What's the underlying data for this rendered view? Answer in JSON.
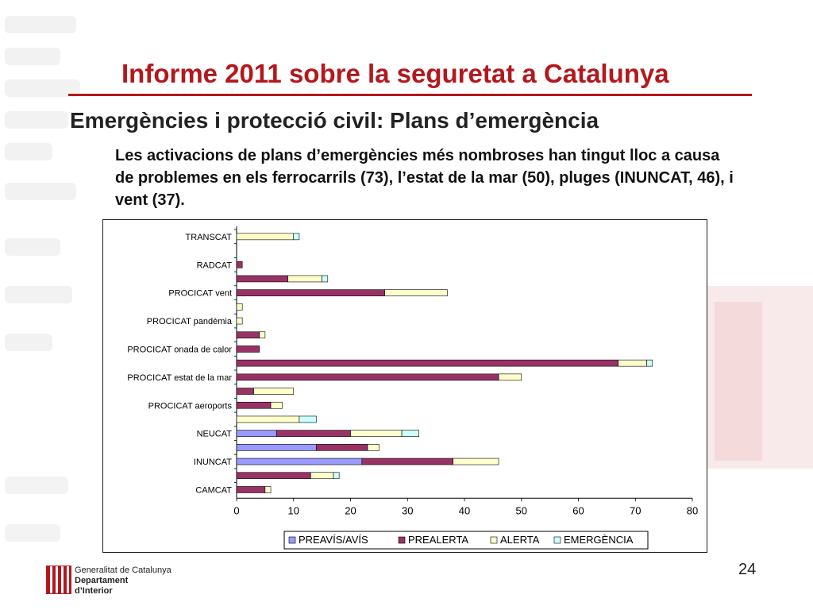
{
  "slide": {
    "title": "Informe 2011 sobre la seguretat a Catalunya",
    "subtitle": "Emergències i protecció civil: Plans d’emergència",
    "body": "Les activacions de plans d’emergències més nombroses han tingut lloc a causa de problemes en els ferrocarrils (73), l’estat de la mar (50), pluges (INUNCAT, 46), i vent (37).",
    "page_number": "24",
    "footer": {
      "line1": "Generalitat de Catalunya",
      "line2": "Departament",
      "line3": "d’Interior"
    }
  },
  "colors": {
    "title": "#b4181c",
    "preavis": "#9999ff",
    "prealerta": "#993366",
    "alerta": "#ffffcc",
    "emergencia": "#ccffff"
  },
  "chart_data": {
    "type": "bar",
    "orientation": "horizontal",
    "stacked": true,
    "title": "",
    "xlabel": "",
    "ylabel": "",
    "xlim": [
      0,
      80
    ],
    "x_ticks": [
      "0",
      "10",
      "20",
      "30",
      "40",
      "50",
      "60",
      "70",
      "80"
    ],
    "grid": false,
    "legend_position": "bottom",
    "categories": [
      "CAMCAT",
      "",
      "INUNCAT",
      "",
      "NEUCAT",
      "",
      "PROCICAT aeroports",
      "",
      "PROCICAT estat de la mar",
      "",
      "PROCICAT onada de calor",
      "",
      "PROCICAT pandèmia",
      "",
      "PROCICAT vent",
      "",
      "RADCAT",
      "",
      "TRANSCAT"
    ],
    "series": [
      {
        "name": "PREAVÍS/AVÍS",
        "color": "#9999ff",
        "values": [
          0,
          0,
          22,
          14,
          7,
          0,
          0,
          0,
          0,
          0,
          0,
          0,
          0,
          0,
          0,
          0,
          0,
          0,
          0
        ]
      },
      {
        "name": "PREALERTA",
        "color": "#993366",
        "values": [
          5,
          13,
          16,
          9,
          13,
          0,
          6,
          3,
          46,
          67,
          4,
          4,
          0,
          0,
          26,
          9,
          1,
          0,
          0
        ]
      },
      {
        "name": "ALERTA",
        "color": "#ffffcc",
        "values": [
          1,
          4,
          8,
          2,
          9,
          11,
          2,
          7,
          4,
          5,
          0,
          1,
          1,
          1,
          11,
          6,
          0,
          0,
          10
        ]
      },
      {
        "name": "EMERGÈNCIA",
        "color": "#ccffff",
        "values": [
          0,
          1,
          0,
          0,
          3,
          3,
          0,
          0,
          0,
          1,
          0,
          0,
          0,
          0,
          0,
          1,
          0,
          0,
          1
        ]
      }
    ]
  }
}
